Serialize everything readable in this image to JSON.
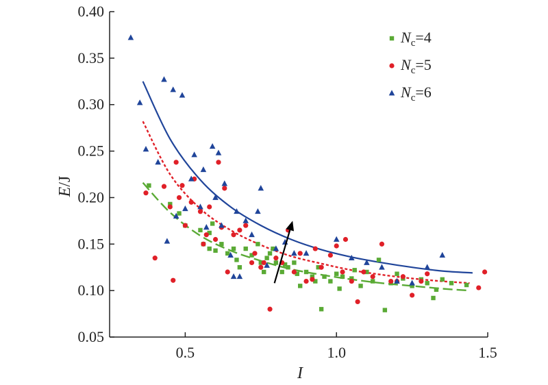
{
  "chart_data": {
    "type": "scatter",
    "xlabel": "I",
    "ylabel": {
      "main": "E",
      "unit": "/J"
    },
    "xlim": [
      0.25,
      1.5
    ],
    "ylim": [
      0.05,
      0.4
    ],
    "xticks": [
      "0.5",
      "1.0",
      "1.5"
    ],
    "xtick_values": [
      0.5,
      1.0,
      1.5
    ],
    "yticks": [
      "0.05",
      "0.10",
      "0.15",
      "0.20",
      "0.25",
      "0.30",
      "0.35",
      "0.40"
    ],
    "ytick_values": [
      0.05,
      0.1,
      0.15,
      0.2,
      0.25,
      0.3,
      0.35,
      0.4
    ],
    "grid": false,
    "legend_position": "top-right",
    "series": [
      {
        "key": "nc4",
        "name": {
          "sym": "N",
          "sub": "c",
          "suffix": "=4"
        },
        "marker": "square",
        "color": "#5aaa35",
        "line_style": "long-dash",
        "points": [
          [
            0.38,
            0.213
          ],
          [
            0.45,
            0.193
          ],
          [
            0.48,
            0.183
          ],
          [
            0.5,
            0.17
          ],
          [
            0.55,
            0.165
          ],
          [
            0.56,
            0.15
          ],
          [
            0.58,
            0.162
          ],
          [
            0.58,
            0.145
          ],
          [
            0.59,
            0.172
          ],
          [
            0.6,
            0.143
          ],
          [
            0.62,
            0.15
          ],
          [
            0.64,
            0.14
          ],
          [
            0.66,
            0.145
          ],
          [
            0.67,
            0.133
          ],
          [
            0.68,
            0.125
          ],
          [
            0.7,
            0.145
          ],
          [
            0.72,
            0.138
          ],
          [
            0.74,
            0.15
          ],
          [
            0.75,
            0.13
          ],
          [
            0.76,
            0.12
          ],
          [
            0.77,
            0.135
          ],
          [
            0.78,
            0.14
          ],
          [
            0.79,
            0.145
          ],
          [
            0.8,
            0.13
          ],
          [
            0.82,
            0.12
          ],
          [
            0.83,
            0.128
          ],
          [
            0.84,
            0.125
          ],
          [
            0.86,
            0.13
          ],
          [
            0.87,
            0.118
          ],
          [
            0.88,
            0.105
          ],
          [
            0.9,
            0.12
          ],
          [
            0.92,
            0.115
          ],
          [
            0.93,
            0.11
          ],
          [
            0.94,
            0.125
          ],
          [
            0.95,
            0.08
          ],
          [
            0.96,
            0.115
          ],
          [
            0.98,
            0.11
          ],
          [
            1.0,
            0.118
          ],
          [
            1.01,
            0.102
          ],
          [
            1.02,
            0.115
          ],
          [
            1.05,
            0.113
          ],
          [
            1.06,
            0.122
          ],
          [
            1.08,
            0.105
          ],
          [
            1.1,
            0.12
          ],
          [
            1.12,
            0.11
          ],
          [
            1.14,
            0.133
          ],
          [
            1.16,
            0.079
          ],
          [
            1.18,
            0.108
          ],
          [
            1.2,
            0.118
          ],
          [
            1.22,
            0.113
          ],
          [
            1.25,
            0.105
          ],
          [
            1.28,
            0.112
          ],
          [
            1.3,
            0.108
          ],
          [
            1.32,
            0.092
          ],
          [
            1.33,
            0.101
          ],
          [
            1.35,
            0.112
          ],
          [
            1.38,
            0.108
          ],
          [
            1.43,
            0.106
          ]
        ],
        "fit": [
          [
            0.36,
            0.216
          ],
          [
            0.45,
            0.184
          ],
          [
            0.55,
            0.159
          ],
          [
            0.65,
            0.143
          ],
          [
            0.75,
            0.132
          ],
          [
            0.85,
            0.123
          ],
          [
            0.95,
            0.117
          ],
          [
            1.05,
            0.112
          ],
          [
            1.15,
            0.108
          ],
          [
            1.25,
            0.105
          ],
          [
            1.35,
            0.102
          ],
          [
            1.44,
            0.1
          ]
        ]
      },
      {
        "key": "nc5",
        "name": {
          "sym": "N",
          "sub": "c",
          "suffix": "=5"
        },
        "marker": "circle",
        "color": "#e02028",
        "line_style": "short-dash",
        "points": [
          [
            0.37,
            0.205
          ],
          [
            0.4,
            0.135
          ],
          [
            0.43,
            0.212
          ],
          [
            0.45,
            0.19
          ],
          [
            0.46,
            0.111
          ],
          [
            0.47,
            0.238
          ],
          [
            0.48,
            0.2
          ],
          [
            0.49,
            0.213
          ],
          [
            0.5,
            0.17
          ],
          [
            0.52,
            0.195
          ],
          [
            0.53,
            0.22
          ],
          [
            0.55,
            0.185
          ],
          [
            0.56,
            0.15
          ],
          [
            0.57,
            0.16
          ],
          [
            0.58,
            0.19
          ],
          [
            0.6,
            0.155
          ],
          [
            0.61,
            0.238
          ],
          [
            0.62,
            0.168
          ],
          [
            0.63,
            0.21
          ],
          [
            0.64,
            0.12
          ],
          [
            0.66,
            0.16
          ],
          [
            0.68,
            0.165
          ],
          [
            0.7,
            0.17
          ],
          [
            0.72,
            0.13
          ],
          [
            0.73,
            0.14
          ],
          [
            0.75,
            0.125
          ],
          [
            0.76,
            0.13
          ],
          [
            0.78,
            0.08
          ],
          [
            0.8,
            0.135
          ],
          [
            0.82,
            0.13
          ],
          [
            0.84,
            0.165
          ],
          [
            0.86,
            0.12
          ],
          [
            0.88,
            0.14
          ],
          [
            0.9,
            0.11
          ],
          [
            0.92,
            0.112
          ],
          [
            0.93,
            0.145
          ],
          [
            0.95,
            0.125
          ],
          [
            0.98,
            0.138
          ],
          [
            1.0,
            0.148
          ],
          [
            1.02,
            0.12
          ],
          [
            1.03,
            0.155
          ],
          [
            1.05,
            0.11
          ],
          [
            1.07,
            0.088
          ],
          [
            1.09,
            0.12
          ],
          [
            1.12,
            0.115
          ],
          [
            1.15,
            0.15
          ],
          [
            1.18,
            0.11
          ],
          [
            1.2,
            0.11
          ],
          [
            1.22,
            0.115
          ],
          [
            1.25,
            0.095
          ],
          [
            1.28,
            0.11
          ],
          [
            1.3,
            0.118
          ],
          [
            1.47,
            0.103
          ],
          [
            1.49,
            0.12
          ]
        ],
        "fit": [
          [
            0.36,
            0.282
          ],
          [
            0.45,
            0.225
          ],
          [
            0.55,
            0.188
          ],
          [
            0.65,
            0.165
          ],
          [
            0.75,
            0.149
          ],
          [
            0.85,
            0.137
          ],
          [
            0.95,
            0.129
          ],
          [
            1.05,
            0.122
          ],
          [
            1.15,
            0.117
          ],
          [
            1.25,
            0.113
          ],
          [
            1.35,
            0.11
          ],
          [
            1.44,
            0.108
          ]
        ]
      },
      {
        "key": "nc6",
        "name": {
          "sym": "N",
          "sub": "c",
          "suffix": "=6"
        },
        "marker": "triangle",
        "color": "#20459a",
        "line_style": "solid",
        "points": [
          [
            0.32,
            0.372
          ],
          [
            0.35,
            0.302
          ],
          [
            0.37,
            0.252
          ],
          [
            0.41,
            0.238
          ],
          [
            0.43,
            0.327
          ],
          [
            0.44,
            0.153
          ],
          [
            0.46,
            0.316
          ],
          [
            0.47,
            0.18
          ],
          [
            0.49,
            0.31
          ],
          [
            0.5,
            0.188
          ],
          [
            0.52,
            0.22
          ],
          [
            0.53,
            0.246
          ],
          [
            0.55,
            0.19
          ],
          [
            0.56,
            0.23
          ],
          [
            0.57,
            0.168
          ],
          [
            0.59,
            0.255
          ],
          [
            0.6,
            0.2
          ],
          [
            0.61,
            0.248
          ],
          [
            0.62,
            0.17
          ],
          [
            0.63,
            0.215
          ],
          [
            0.65,
            0.138
          ],
          [
            0.66,
            0.115
          ],
          [
            0.67,
            0.185
          ],
          [
            0.68,
            0.115
          ],
          [
            0.7,
            0.175
          ],
          [
            0.72,
            0.16
          ],
          [
            0.74,
            0.185
          ],
          [
            0.75,
            0.21
          ],
          [
            0.77,
            0.127
          ],
          [
            0.8,
            0.145
          ],
          [
            0.83,
            0.152
          ],
          [
            0.86,
            0.14
          ],
          [
            0.9,
            0.14
          ],
          [
            1.0,
            0.155
          ],
          [
            1.05,
            0.135
          ],
          [
            1.1,
            0.13
          ],
          [
            1.15,
            0.125
          ],
          [
            1.2,
            0.11
          ],
          [
            1.25,
            0.108
          ],
          [
            1.3,
            0.125
          ],
          [
            1.35,
            0.138
          ]
        ],
        "fit": [
          [
            0.36,
            0.325
          ],
          [
            0.45,
            0.263
          ],
          [
            0.55,
            0.219
          ],
          [
            0.65,
            0.19
          ],
          [
            0.75,
            0.17
          ],
          [
            0.85,
            0.155
          ],
          [
            0.95,
            0.144
          ],
          [
            1.05,
            0.136
          ],
          [
            1.15,
            0.13
          ],
          [
            1.25,
            0.125
          ],
          [
            1.35,
            0.121
          ],
          [
            1.45,
            0.119
          ]
        ]
      }
    ],
    "arrow": {
      "from": [
        0.795,
        0.108
      ],
      "to": [
        0.855,
        0.175
      ],
      "color": "#000000"
    }
  }
}
